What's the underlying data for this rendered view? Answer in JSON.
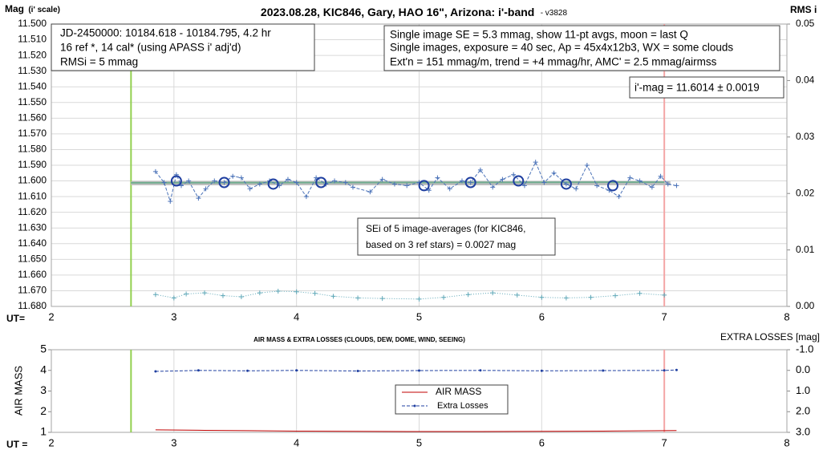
{
  "chart_data": [
    {
      "type": "line",
      "title": "2023.08.28, KIC846, Gary, HAO 16\", Arizona: i'-band",
      "subtitle": "- v3828",
      "y_label": "Mag",
      "y_label_note": "(i' scale)",
      "y2_label": "RMS i",
      "x_label": "UT=",
      "xlim": [
        2,
        8
      ],
      "xticks": [
        2,
        3,
        4,
        5,
        6,
        7,
        8
      ],
      "ylim": [
        11.68,
        11.5
      ],
      "yticks": [
        {
          "value": 11.5,
          "label": "11.500"
        },
        {
          "value": 11.51,
          "label": "11.510"
        },
        {
          "value": 11.52,
          "label": "11.520"
        },
        {
          "value": 11.53,
          "label": "11.530"
        },
        {
          "value": 11.54,
          "label": "11.540"
        },
        {
          "value": 11.55,
          "label": "11.550"
        },
        {
          "value": 11.56,
          "label": "11.560"
        },
        {
          "value": 11.57,
          "label": "11.570"
        },
        {
          "value": 11.58,
          "label": "11.580"
        },
        {
          "value": 11.59,
          "label": "11.590"
        },
        {
          "value": 11.6,
          "label": "11.600"
        },
        {
          "value": 11.61,
          "label": "11.610"
        },
        {
          "value": 11.62,
          "label": "11.620"
        },
        {
          "value": 11.63,
          "label": "11.630"
        },
        {
          "value": 11.64,
          "label": "11.640"
        },
        {
          "value": 11.65,
          "label": "11.650"
        },
        {
          "value": 11.66,
          "label": "11.660"
        },
        {
          "value": 11.67,
          "label": "11.670"
        },
        {
          "value": 11.68,
          "label": "11.680"
        }
      ],
      "y2lim": [
        0,
        0.05
      ],
      "y2ticks": [
        {
          "value": 0,
          "label": "0.00"
        },
        0.01,
        0.02,
        0.03,
        0.04,
        0.05
      ],
      "grid": "both",
      "vlines": [
        {
          "x": 2.65,
          "color": "#92d050"
        },
        {
          "x": 7.0,
          "color": "#f4a6a6"
        }
      ],
      "series": [
        {
          "color": "#bfbfbf",
          "line": "solid",
          "width": 5,
          "marker": "none",
          "x": [
            2.65,
            7.05
          ],
          "values": [
            11.6015,
            11.6015
          ]
        },
        {
          "color": "#70ad8f",
          "line": "solid",
          "width": 2,
          "marker": "none",
          "x": [
            2.65,
            7.0
          ],
          "values": [
            11.6012,
            11.6008
          ]
        },
        {
          "color": "#4a72b8",
          "line": "dashed",
          "width": 1,
          "marker": "plus",
          "x": [
            2.85,
            2.92,
            2.97,
            3.02,
            3.06,
            3.12,
            3.2,
            3.26,
            3.33,
            3.41,
            3.48,
            3.55,
            3.62,
            3.7,
            3.78,
            3.86,
            3.93,
            4.0,
            4.08,
            4.16,
            4.24,
            4.31,
            4.4,
            4.46,
            4.6,
            4.7,
            4.8,
            4.9,
            5.0,
            5.08,
            5.15,
            5.25,
            5.35,
            5.42,
            5.5,
            5.6,
            5.68,
            5.77,
            5.86,
            5.95,
            6.02,
            6.1,
            6.2,
            6.28,
            6.37,
            6.45,
            6.55,
            6.63,
            6.72,
            6.8,
            6.9,
            6.97,
            7.03,
            7.1
          ],
          "values": [
            11.594,
            11.601,
            11.613,
            11.596,
            11.603,
            11.6,
            11.611,
            11.605,
            11.6,
            11.601,
            11.597,
            11.598,
            11.605,
            11.602,
            11.6,
            11.603,
            11.599,
            11.601,
            11.61,
            11.598,
            11.602,
            11.6,
            11.601,
            11.604,
            11.607,
            11.599,
            11.602,
            11.603,
            11.601,
            11.606,
            11.598,
            11.605,
            11.6,
            11.601,
            11.593,
            11.604,
            11.599,
            11.596,
            11.603,
            11.588,
            11.601,
            11.595,
            11.602,
            11.605,
            11.59,
            11.603,
            11.606,
            11.61,
            11.598,
            11.6,
            11.604,
            11.597,
            11.602,
            11.603
          ]
        },
        {
          "color": "#1f3fa0",
          "line": "none",
          "width": 2,
          "marker": "circle",
          "x": [
            3.02,
            3.41,
            3.81,
            4.2,
            5.04,
            5.42,
            5.81,
            6.2,
            6.58
          ],
          "values": [
            11.6,
            11.601,
            11.602,
            11.601,
            11.603,
            11.601,
            11.6,
            11.602,
            11.603
          ]
        },
        {
          "color": "#5fa8b8",
          "line": "dotted",
          "width": 1,
          "marker": "plus",
          "axis": "y2",
          "x": [
            2.85,
            3.0,
            3.1,
            3.25,
            3.4,
            3.55,
            3.7,
            3.85,
            4.0,
            4.15,
            4.3,
            4.5,
            4.7,
            5.0,
            5.2,
            5.4,
            5.6,
            5.8,
            6.0,
            6.2,
            6.4,
            6.6,
            6.8,
            7.0
          ],
          "values": [
            0.0021,
            0.0015,
            0.0022,
            0.0024,
            0.0019,
            0.0017,
            0.0024,
            0.0027,
            0.0026,
            0.0023,
            0.0018,
            0.0015,
            0.0014,
            0.0013,
            0.0016,
            0.0021,
            0.0024,
            0.002,
            0.0016,
            0.0015,
            0.0016,
            0.0019,
            0.0023,
            0.002
          ]
        }
      ],
      "annotations": [
        {
          "lines": [
            "JD-2450000: 10184.618 - 10184.795, 4.2  hr",
            "16 ref *, 14 cal* (using APASS i' adj'd)",
            "RMSi = 5 mmag"
          ]
        },
        {
          "lines": [
            "Single image SE = 5.3 mmag, show 11-pt avgs, moon = last Q",
            "Single images, exposure = 40 sec, Ap = 45x4x12b3, WX = some clouds",
            "Ext'n = 151 mmag/m, trend = +4 mmag/hr, AMC' = 2.5 mmag/airmss"
          ]
        },
        {
          "lines": [
            "i'-mag = 11.6014 ± 0.0019"
          ]
        },
        {
          "lines": [
            "SEi of 5 image-averages (for KIC846,",
            "based on 3 ref stars) = 0.0027 mag"
          ]
        }
      ]
    },
    {
      "type": "line",
      "title": "AIR MASS & EXTRA LOSSES (CLOUDS, DEW, DOME, WIND, SEEING)",
      "y_label": "AIR MASS",
      "y2_label": "EXTRA LOSSES [mag]",
      "x_label": "UT =",
      "xlim": [
        2,
        8
      ],
      "xticks": [
        2,
        3,
        4,
        5,
        6,
        7,
        8
      ],
      "ylim": [
        1,
        5
      ],
      "yticks": [
        1,
        2,
        3,
        4,
        5
      ],
      "y2lim": [
        3,
        -1
      ],
      "y2ticks": [
        {
          "value": -1,
          "label": "-1.0"
        },
        {
          "value": 0,
          "label": "0.0"
        },
        {
          "value": 1,
          "label": "1.0"
        },
        {
          "value": 2,
          "label": "2.0"
        },
        {
          "value": 3,
          "label": "3.0"
        }
      ],
      "grid": "x",
      "legend": "center",
      "vlines": [
        {
          "x": 2.65,
          "color": "#92d050"
        },
        {
          "x": 7.0,
          "color": "#f4a6a6"
        }
      ],
      "series": [
        {
          "name": "AIR MASS",
          "color": "#c00000",
          "line": "solid",
          "width": 1,
          "marker": "none",
          "x": [
            2.85,
            3.2,
            3.6,
            4.0,
            4.5,
            5.0,
            5.5,
            6.0,
            6.5,
            7.0,
            7.1
          ],
          "values": [
            1.12,
            1.1,
            1.08,
            1.06,
            1.05,
            1.04,
            1.04,
            1.05,
            1.06,
            1.08,
            1.09
          ]
        },
        {
          "name": "Extra Losses",
          "color": "#1f3fa0",
          "line": "dashed",
          "width": 1,
          "marker": "dot",
          "axis": "y2",
          "x": [
            2.85,
            3.2,
            3.6,
            4.0,
            4.5,
            5.0,
            5.5,
            6.0,
            6.5,
            7.0,
            7.1
          ],
          "values": [
            0.05,
            0.0,
            0.02,
            0.0,
            0.03,
            0.01,
            0.0,
            0.02,
            0.01,
            0.0,
            -0.02
          ]
        }
      ]
    }
  ]
}
